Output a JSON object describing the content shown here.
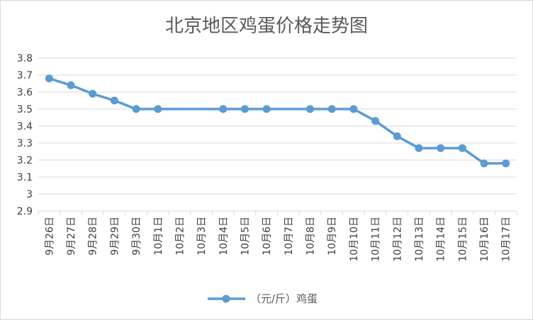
{
  "chart_data": {
    "type": "line",
    "title": "北京地区鸡蛋价格走势图",
    "xlabel": "",
    "ylabel": "",
    "ylim": [
      2.9,
      3.8
    ],
    "yticks": [
      "2.9",
      "3",
      "3.1",
      "3.2",
      "3.3",
      "3.4",
      "3.5",
      "3.6",
      "3.7",
      "3.8"
    ],
    "categories": [
      "9月26日",
      "9月27日",
      "9月28日",
      "9月29日",
      "9月30日",
      "10月1日",
      "10月2日",
      "10月3日",
      "10月4日",
      "10月5日",
      "10月6日",
      "10月7日",
      "10月8日",
      "10月9日",
      "10月10日",
      "10月11日",
      "10月12日",
      "10月13日",
      "10月14日",
      "10月15日",
      "10月16日",
      "10月17日"
    ],
    "series": [
      {
        "name": "（元/斤）鸡蛋",
        "color": "#5b9bd5",
        "values": [
          3.68,
          3.64,
          3.59,
          3.55,
          3.5,
          3.5,
          null,
          null,
          3.5,
          3.5,
          3.5,
          null,
          3.5,
          3.5,
          3.5,
          3.43,
          3.34,
          3.27,
          3.27,
          3.27,
          3.18,
          3.18
        ]
      }
    ],
    "grid": true,
    "legend_position": "bottom"
  }
}
